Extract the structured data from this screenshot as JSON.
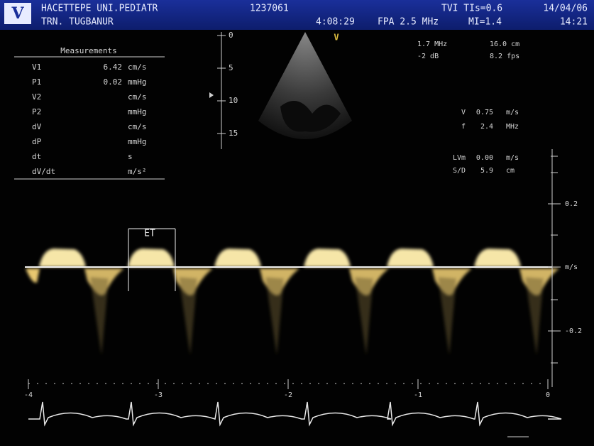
{
  "header": {
    "logo": "V",
    "institution": "HACETTEPE UNI.PEDIATR",
    "patient": "TRN. TUGBANUR",
    "id": "1237061",
    "time": "4:08:29",
    "probe": "FPA 2.5 MHz",
    "tvi": "TVI TIs=0.6",
    "mi": "MI=1.4",
    "date": "14/04/06",
    "clock": "14:21"
  },
  "measurements": {
    "title": "Measurements",
    "rows": [
      {
        "label": "V1",
        "value": "6.42",
        "unit": "cm/s"
      },
      {
        "label": "P1",
        "value": "0.02",
        "unit": "mmHg"
      },
      {
        "label": "V2",
        "unit": "cm/s"
      },
      {
        "label": "P2",
        "unit": "mmHg"
      },
      {
        "label": "dV",
        "unit": "cm/s"
      },
      {
        "label": "dP",
        "unit": "mmHg"
      },
      {
        "label": "dt",
        "unit": "s"
      },
      {
        "label": "dV/dt",
        "unit": "m/s²"
      }
    ]
  },
  "settings": {
    "frequency": "1.7 MHz",
    "depth": "16.0 cm",
    "gain": "-2 dB",
    "frame_rate": "8.2 fps"
  },
  "doppler": {
    "rows": [
      [
        "V",
        "0.75",
        "m/s"
      ],
      [
        "f",
        "2.4",
        "MHz"
      ],
      [
        "LVm",
        "0.00",
        "m/s"
      ],
      [
        "S/D",
        "5.9",
        "cm"
      ]
    ]
  },
  "sector_marker": "V",
  "depth_scale": [
    "0",
    "5",
    "10",
    "15"
  ],
  "velocity_scale": [
    "0.2",
    "m/s",
    "-0.2"
  ],
  "time_scale": [
    "-4",
    "-3",
    "-2",
    "-1",
    "0"
  ],
  "annotation": "ET"
}
